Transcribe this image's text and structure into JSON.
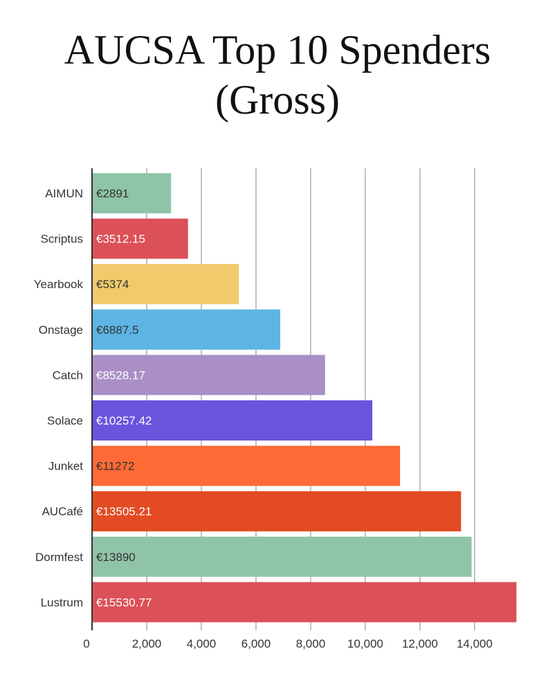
{
  "title_lines": [
    "AUCSA Top 10 Spenders",
    "(Gross)"
  ],
  "chart_data": {
    "type": "bar",
    "orientation": "horizontal",
    "title": "AUCSA Top 10 Spenders (Gross)",
    "categories": [
      "AIMUN",
      "Scriptus",
      "Yearbook",
      "Onstage",
      "Catch",
      "Solace",
      "Junket",
      "AUCafé",
      "Dormfest",
      "Lustrum"
    ],
    "values": [
      2891,
      3512.15,
      5374,
      6887.5,
      8528.17,
      10257.42,
      11272,
      13505.21,
      13890,
      15530.77
    ],
    "data_labels": [
      "€2891",
      "€3512.15",
      "€5374",
      "€6887.5",
      "€8528.17",
      "€10257.42",
      "€11272",
      "€13505.21",
      "€13890",
      "€15530.77"
    ],
    "bar_colors": [
      "#8fc4a8",
      "#db5157",
      "#f0ca6b",
      "#5db5e3",
      "#a98fc6",
      "#6c53dd",
      "#fe6a36",
      "#e24b23",
      "#8fc4a8",
      "#db5157"
    ],
    "label_colors": [
      "#333333",
      "#ffffff",
      "#333333",
      "#333333",
      "#ffffff",
      "#ffffff",
      "#333333",
      "#ffffff",
      "#333333",
      "#ffffff"
    ],
    "x_ticks": [
      0,
      2000,
      4000,
      6000,
      8000,
      10000,
      12000,
      14000
    ],
    "x_tick_labels": [
      "0",
      "2,000",
      "4,000",
      "6,000",
      "8,000",
      "10,000",
      "12,000",
      "14,000"
    ],
    "xlim": [
      0,
      15600
    ],
    "grid": true,
    "xlabel": "",
    "ylabel": ""
  }
}
